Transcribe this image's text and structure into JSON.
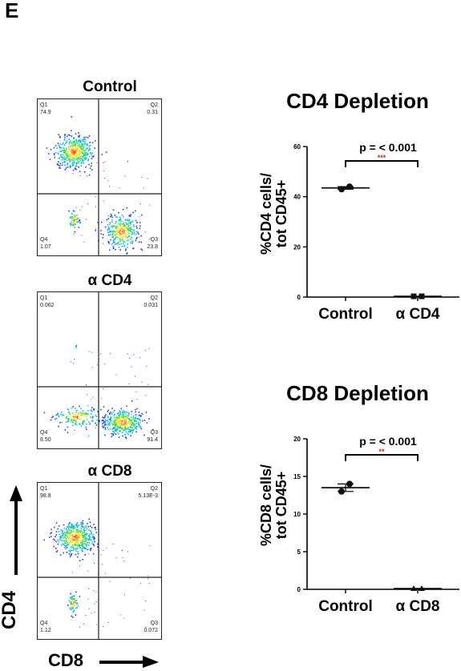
{
  "panel_letter": "E",
  "flow_plots": [
    {
      "title": "Control",
      "q1": "Q1",
      "q1_val": "74.9",
      "q2": "Q2",
      "q2_val": "0.31",
      "q3": "Q3",
      "q3_val": "23.8",
      "q4": "Q4",
      "q4_val": "1.07"
    },
    {
      "title": "α CD4",
      "q1": "Q1",
      "q1_val": "0.062",
      "q2": "Q2",
      "q2_val": "0.031",
      "q3": "Q3",
      "q3_val": "91.4",
      "q4": "Q4",
      "q4_val": "8.50"
    },
    {
      "title": "α CD8",
      "q1": "Q1",
      "q1_val": "98.8",
      "q2": "Q2",
      "q2_val": "5.13E-3",
      "q3": "Q3",
      "q3_val": "0.072",
      "q4": "Q4",
      "q4_val": "1.12"
    }
  ],
  "flow_axes": {
    "y": "CD4",
    "x": "CD8"
  },
  "chart_data": [
    {
      "type": "scatter",
      "title": "CD4 Depletion",
      "ylabel": "%CD4 cells/\ntot CD45+",
      "categories": [
        "Control",
        "α CD4"
      ],
      "points": [
        {
          "category": "Control",
          "values": [
            43,
            44
          ]
        },
        {
          "category": "α CD4",
          "values": [
            0.3,
            0.3
          ]
        }
      ],
      "means": [
        43.5,
        0.3
      ],
      "ylim": [
        0,
        60
      ],
      "yticks": [
        0,
        20,
        40,
        60
      ],
      "annotation": "p = < 0.001",
      "significance": "***",
      "colors": {
        "markers": "#111111",
        "significance": "#e02020"
      }
    },
    {
      "type": "scatter",
      "title": "CD8 Depletion",
      "ylabel": "%CD8 cells/\ntot CD45+",
      "categories": [
        "Control",
        "α CD8"
      ],
      "points": [
        {
          "category": "Control",
          "values": [
            13,
            14
          ]
        },
        {
          "category": "α CD8",
          "values": [
            0.1,
            0.1
          ]
        }
      ],
      "means": [
        13.5,
        0.1
      ],
      "ylim": [
        0,
        20
      ],
      "yticks": [
        0,
        5,
        10,
        15,
        20
      ],
      "annotation": "p = < 0.001",
      "significance": "**",
      "colors": {
        "markers": "#111111",
        "significance": "#e02020"
      }
    }
  ]
}
